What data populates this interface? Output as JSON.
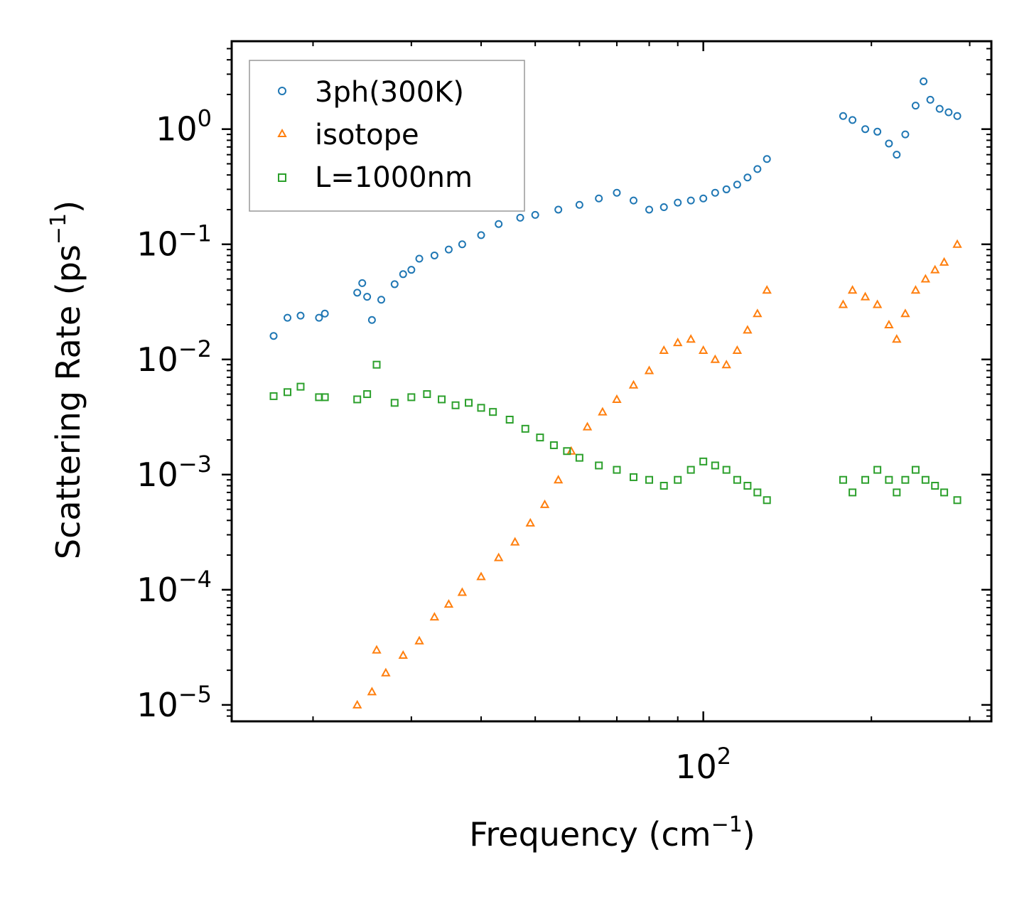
{
  "chart_data": {
    "type": "scatter",
    "title": "",
    "xlabel": "Frequency (cm",
    "xlabel_sup": "−1",
    "xlabel_end": ")",
    "ylabel": "Scattering Rate (ps",
    "ylabel_sup": "−1",
    "ylabel_end": ")",
    "xscale": "log",
    "yscale": "log",
    "xlim": [
      14.3,
      328
    ],
    "ylim": [
      7.2e-06,
      5.8
    ],
    "x_ticks": [
      {
        "value": 100,
        "base": "10",
        "exp": "2"
      }
    ],
    "y_ticks": [
      {
        "value": 1,
        "base": "10",
        "exp": "0"
      },
      {
        "value": 0.1,
        "base": "10",
        "exp": "−1"
      },
      {
        "value": 0.01,
        "base": "10",
        "exp": "−2"
      },
      {
        "value": 0.001,
        "base": "10",
        "exp": "−3"
      },
      {
        "value": 0.0001,
        "base": "10",
        "exp": "−4"
      },
      {
        "value": 1e-05,
        "base": "10",
        "exp": "−5"
      }
    ],
    "legend_position": "top-left",
    "series": [
      {
        "name": "3ph(300K)",
        "color": "#1f77b4",
        "marker": "circle",
        "points": [
          [
            17,
            0.016
          ],
          [
            18,
            0.023
          ],
          [
            19,
            0.024
          ],
          [
            20.5,
            0.023
          ],
          [
            21,
            0.025
          ],
          [
            24,
            0.038
          ],
          [
            24.5,
            0.046
          ],
          [
            25,
            0.035
          ],
          [
            25.5,
            0.022
          ],
          [
            26.5,
            0.033
          ],
          [
            28,
            0.045
          ],
          [
            29,
            0.055
          ],
          [
            30,
            0.06
          ],
          [
            31,
            0.075
          ],
          [
            33,
            0.08
          ],
          [
            35,
            0.09
          ],
          [
            37,
            0.1
          ],
          [
            40,
            0.12
          ],
          [
            43,
            0.15
          ],
          [
            47,
            0.17
          ],
          [
            50,
            0.18
          ],
          [
            55,
            0.2
          ],
          [
            60,
            0.22
          ],
          [
            65,
            0.25
          ],
          [
            70,
            0.28
          ],
          [
            75,
            0.24
          ],
          [
            80,
            0.2
          ],
          [
            85,
            0.21
          ],
          [
            90,
            0.23
          ],
          [
            95,
            0.24
          ],
          [
            100,
            0.25
          ],
          [
            105,
            0.28
          ],
          [
            110,
            0.3
          ],
          [
            115,
            0.33
          ],
          [
            120,
            0.38
          ],
          [
            125,
            0.45
          ],
          [
            130,
            0.55
          ],
          [
            178,
            1.3
          ],
          [
            185,
            1.2
          ],
          [
            195,
            1.0
          ],
          [
            205,
            0.95
          ],
          [
            215,
            0.75
          ],
          [
            222,
            0.6
          ],
          [
            230,
            0.9
          ],
          [
            240,
            1.6
          ],
          [
            248,
            2.6
          ],
          [
            255,
            1.8
          ],
          [
            265,
            1.5
          ],
          [
            275,
            1.4
          ],
          [
            285,
            1.3
          ]
        ]
      },
      {
        "name": "isotope",
        "color": "#ff7f0e",
        "marker": "triangle",
        "points": [
          [
            24,
            1e-05
          ],
          [
            25.5,
            1.3e-05
          ],
          [
            26,
            3e-05
          ],
          [
            27,
            1.9e-05
          ],
          [
            29,
            2.7e-05
          ],
          [
            31,
            3.6e-05
          ],
          [
            33,
            5.8e-05
          ],
          [
            35,
            7.5e-05
          ],
          [
            37,
            9.5e-05
          ],
          [
            40,
            0.00013
          ],
          [
            43,
            0.00019
          ],
          [
            46,
            0.00026
          ],
          [
            49,
            0.00038
          ],
          [
            52,
            0.00055
          ],
          [
            55,
            0.0009
          ],
          [
            58,
            0.0016
          ],
          [
            62,
            0.0026
          ],
          [
            66,
            0.0035
          ],
          [
            70,
            0.0045
          ],
          [
            75,
            0.006
          ],
          [
            80,
            0.008
          ],
          [
            85,
            0.012
          ],
          [
            90,
            0.014
          ],
          [
            95,
            0.015
          ],
          [
            100,
            0.012
          ],
          [
            105,
            0.01
          ],
          [
            110,
            0.009
          ],
          [
            115,
            0.012
          ],
          [
            120,
            0.018
          ],
          [
            125,
            0.025
          ],
          [
            130,
            0.04
          ],
          [
            178,
            0.03
          ],
          [
            185,
            0.04
          ],
          [
            195,
            0.035
          ],
          [
            205,
            0.03
          ],
          [
            215,
            0.02
          ],
          [
            222,
            0.015
          ],
          [
            230,
            0.025
          ],
          [
            240,
            0.04
          ],
          [
            250,
            0.05
          ],
          [
            260,
            0.06
          ],
          [
            270,
            0.07
          ],
          [
            285,
            0.1
          ]
        ]
      },
      {
        "name": "L=1000nm",
        "color": "#2ca02c",
        "marker": "square",
        "points": [
          [
            17,
            0.0048
          ],
          [
            18,
            0.0052
          ],
          [
            19,
            0.0058
          ],
          [
            20.5,
            0.0047
          ],
          [
            21,
            0.0047
          ],
          [
            24,
            0.0045
          ],
          [
            25,
            0.005
          ],
          [
            26,
            0.009
          ],
          [
            28,
            0.0042
          ],
          [
            30,
            0.0047
          ],
          [
            32,
            0.005
          ],
          [
            34,
            0.0045
          ],
          [
            36,
            0.004
          ],
          [
            38,
            0.0042
          ],
          [
            40,
            0.0038
          ],
          [
            42,
            0.0035
          ],
          [
            45,
            0.003
          ],
          [
            48,
            0.0025
          ],
          [
            51,
            0.0021
          ],
          [
            54,
            0.0018
          ],
          [
            57,
            0.0016
          ],
          [
            60,
            0.0014
          ],
          [
            65,
            0.0012
          ],
          [
            70,
            0.0011
          ],
          [
            75,
            0.00095
          ],
          [
            80,
            0.0009
          ],
          [
            85,
            0.0008
          ],
          [
            90,
            0.0009
          ],
          [
            95,
            0.0011
          ],
          [
            100,
            0.0013
          ],
          [
            105,
            0.0012
          ],
          [
            110,
            0.0011
          ],
          [
            115,
            0.0009
          ],
          [
            120,
            0.0008
          ],
          [
            125,
            0.0007
          ],
          [
            130,
            0.0006
          ],
          [
            178,
            0.0009
          ],
          [
            185,
            0.0007
          ],
          [
            195,
            0.0009
          ],
          [
            205,
            0.0011
          ],
          [
            215,
            0.0009
          ],
          [
            222,
            0.0007
          ],
          [
            230,
            0.0009
          ],
          [
            240,
            0.0011
          ],
          [
            250,
            0.0009
          ],
          [
            260,
            0.0008
          ],
          [
            270,
            0.0007
          ],
          [
            285,
            0.0006
          ]
        ]
      }
    ]
  }
}
